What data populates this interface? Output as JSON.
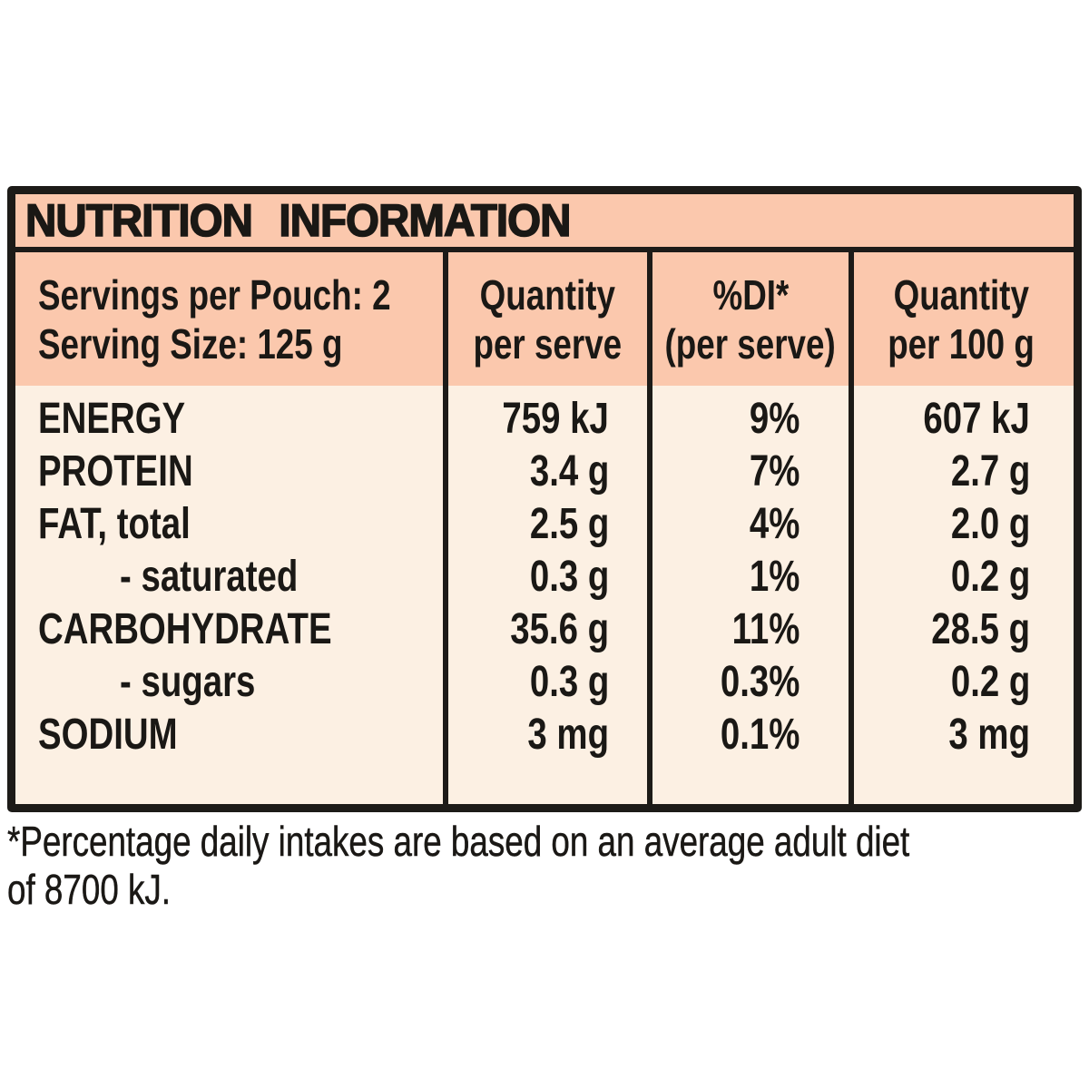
{
  "panel": {
    "title": "NUTRITION INFORMATION",
    "serving_info": {
      "line1": "Servings per Pouch: 2",
      "line2": "Serving Size: 125 g"
    },
    "column_headers": {
      "per_serve": {
        "line1": "Quantity",
        "line2": "per serve"
      },
      "di": {
        "line1": "%DI*",
        "line2": "(per serve)"
      },
      "per_100g": {
        "line1": "Quantity",
        "line2": "per 100 g"
      }
    },
    "rows": [
      {
        "label": "ENERGY",
        "indent": false,
        "per_serve": "759 kJ",
        "di": "9%",
        "per_100g": "607 kJ"
      },
      {
        "label": "PROTEIN",
        "indent": false,
        "per_serve": "3.4 g",
        "di": "7%",
        "per_100g": "2.7 g"
      },
      {
        "label": "FAT, total",
        "indent": false,
        "per_serve": "2.5 g",
        "di": "4%",
        "per_100g": "2.0 g"
      },
      {
        "label": "- saturated",
        "indent": true,
        "per_serve": "0.3 g",
        "di": "1%",
        "per_100g": "0.2 g"
      },
      {
        "label": "CARBOHYDRATE",
        "indent": false,
        "per_serve": "35.6 g",
        "di": "11%",
        "per_100g": "28.5 g"
      },
      {
        "label": "- sugars",
        "indent": true,
        "per_serve": "0.3 g",
        "di": "0.3%",
        "per_100g": "0.2 g"
      },
      {
        "label": "SODIUM",
        "indent": false,
        "per_serve": "3 mg",
        "di": "0.1%",
        "per_100g": "3 mg"
      }
    ],
    "footnote": {
      "line1": "*Percentage daily intakes are based on an average adult diet",
      "line2": "of 8700 kJ."
    },
    "colors": {
      "header_bg": "#FBC8AD",
      "body_bg": "#FCF0E3",
      "border": "#1D1B18",
      "text": "#1A1815",
      "page_bg": "#FFFFFF"
    }
  }
}
